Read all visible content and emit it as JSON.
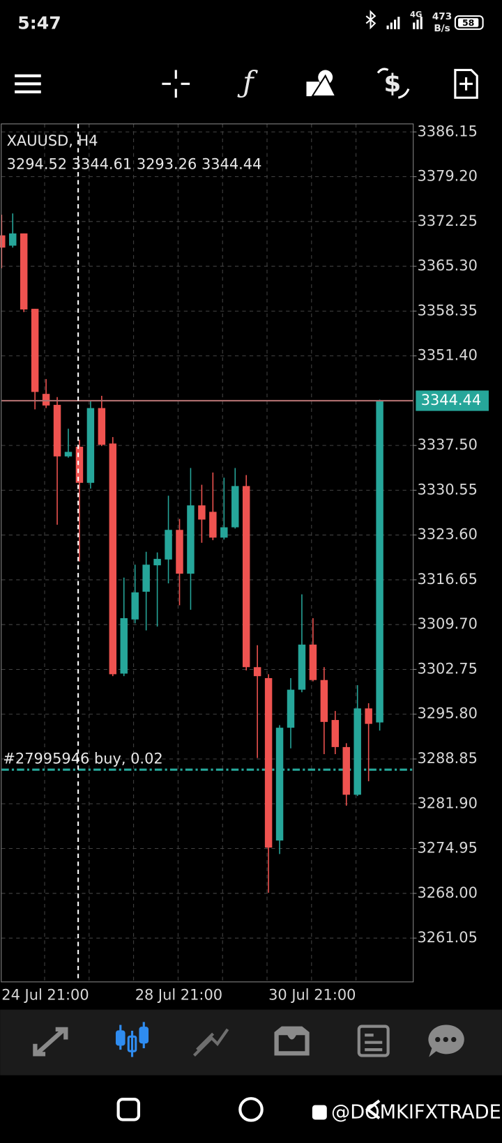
{
  "status_bar": {
    "time": "5:47",
    "network": "4G",
    "speed": "473",
    "speed_unit": "B/s",
    "battery": "58"
  },
  "chart_data": {
    "type": "candlestick",
    "title": "XAUUSD, H4",
    "categories": [
      "24 Jul 21:00",
      null,
      null,
      null,
      null,
      null,
      null,
      null,
      null,
      null,
      null,
      null,
      "28 Jul 21:00",
      null,
      null,
      null,
      null,
      null,
      null,
      null,
      null,
      null,
      null,
      null,
      "30 Jul 21:00",
      null,
      null,
      null,
      null,
      null,
      null,
      null,
      null,
      null,
      null
    ],
    "open": [
      3370.1,
      3368.5,
      3370.4,
      3358.7,
      3345.5,
      3343.8,
      3335.8,
      3337.3,
      3331.7,
      3343.3,
      3337.8,
      3302.1,
      3310.5,
      3314.8,
      3318.9,
      3319.8,
      3324.4,
      3317.6,
      3328.2,
      3327.2,
      3323.2,
      3324.8,
      3331.2,
      3303.1,
      3301.4,
      3276.2,
      3293.7,
      3299.6,
      3306.6,
      3301.1,
      3294.9,
      3290.7,
      3283.3,
      3296.7,
      3294.52
    ],
    "high": [
      3373.3,
      3373.5,
      3370.4,
      3358.7,
      3347.8,
      3345.0,
      3340.1,
      3338.4,
      3344.4,
      3345.2,
      3338.8,
      3317.0,
      3319.0,
      3321.0,
      3320.9,
      3329.7,
      3326.1,
      3334.0,
      3331.4,
      3333.3,
      3332.5,
      3334.0,
      3332.9,
      3306.5,
      3302.0,
      3294.1,
      3301.4,
      3314.4,
      3310.7,
      3303.1,
      3296.3,
      3291.3,
      3300.3,
      3297.5,
      3344.61
    ],
    "low": [
      3365.0,
      3368.2,
      3358.2,
      3343.1,
      3343.3,
      3325.2,
      3335.6,
      3319.5,
      3330.8,
      3337.4,
      3301.7,
      3301.7,
      3309.9,
      3308.8,
      3309.4,
      3316.1,
      3312.7,
      3312.0,
      3322.4,
      3322.8,
      3322.9,
      3324.6,
      3302.6,
      3289.0,
      3268.1,
      3274.1,
      3290.5,
      3299.2,
      3300.9,
      3289.6,
      3289.6,
      3281.6,
      3283.1,
      3285.4,
      3293.26
    ],
    "close": [
      3368.2,
      3370.4,
      3358.6,
      3345.8,
      3343.7,
      3335.8,
      3336.5,
      3331.7,
      3343.3,
      3337.6,
      3302.0,
      3310.7,
      3314.7,
      3319.0,
      3319.9,
      3324.4,
      3317.6,
      3328.2,
      3326.0,
      3323.2,
      3324.8,
      3331.2,
      3303.1,
      3301.7,
      3275.1,
      3293.7,
      3299.6,
      3306.6,
      3301.1,
      3294.6,
      3290.7,
      3283.3,
      3296.7,
      3294.3,
      3344.44
    ],
    "up_color": "#26a69a",
    "down_color": "#ef5350",
    "ylim": [
      3254.26,
      3387.39
    ],
    "yticks": [
      3386.15,
      {
        "value": 3379.2,
        "label": "3379.20"
      },
      3372.25,
      {
        "value": 3365.3,
        "label": "3365.30"
      },
      3358.35,
      {
        "value": 3351.4,
        "label": "3351.40"
      },
      {
        "value": 3337.5,
        "label": "3337.50"
      },
      3330.55,
      {
        "value": 3323.6,
        "label": "3323.60"
      },
      3316.65,
      {
        "value": 3309.7,
        "label": "3309.70"
      },
      3302.75,
      {
        "value": 3295.8,
        "label": "3295.80"
      },
      3288.85,
      {
        "value": 3281.9,
        "label": "3281.90"
      },
      3274.95,
      {
        "value": 3268.0,
        "label": "3268.00"
      },
      3261.05
    ],
    "grid": true,
    "price_line_color": "#b07070",
    "position": {
      "label": "#27995946 buy, 0.02",
      "value": 3287.2,
      "color": "#26a69a"
    }
  },
  "watermark": "@DOMKIFXTRADER"
}
